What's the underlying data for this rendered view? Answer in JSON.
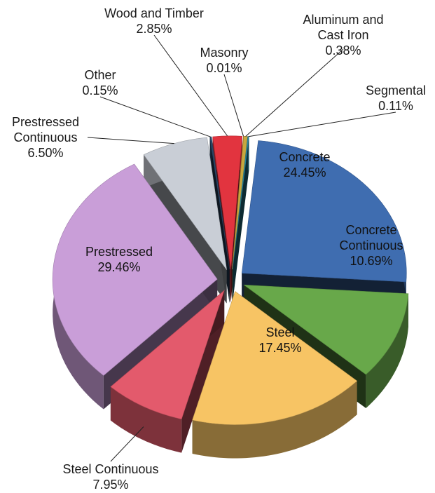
{
  "chart_data": {
    "type": "pie",
    "categories": [
      "Concrete",
      "Concrete Continuous",
      "Steel",
      "Steel Continuous",
      "Prestressed",
      "Prestressed Continuous",
      "Other",
      "Wood and Timber",
      "Masonry",
      "Aluminum and Cast Iron",
      "Segmental"
    ],
    "values": [
      24.45,
      10.69,
      17.45,
      7.95,
      29.46,
      6.5,
      0.15,
      2.85,
      0.01,
      0.38,
      0.11
    ],
    "value_labels": [
      "24.45%",
      "10.69%",
      "17.45%",
      "7.95%",
      "29.46%",
      "6.50%",
      "0.15%",
      "2.85%",
      "0.01%",
      "0.38%",
      "0.11%"
    ],
    "colors": [
      "#3f6db0",
      "#68a84a",
      "#f7c464",
      "#e35a6c",
      "#c99ed8",
      "#c9ced6",
      "#2b4a6c",
      "#e2343f",
      "#d08a34",
      "#c7a83e",
      "#2c8ca3"
    ]
  }
}
